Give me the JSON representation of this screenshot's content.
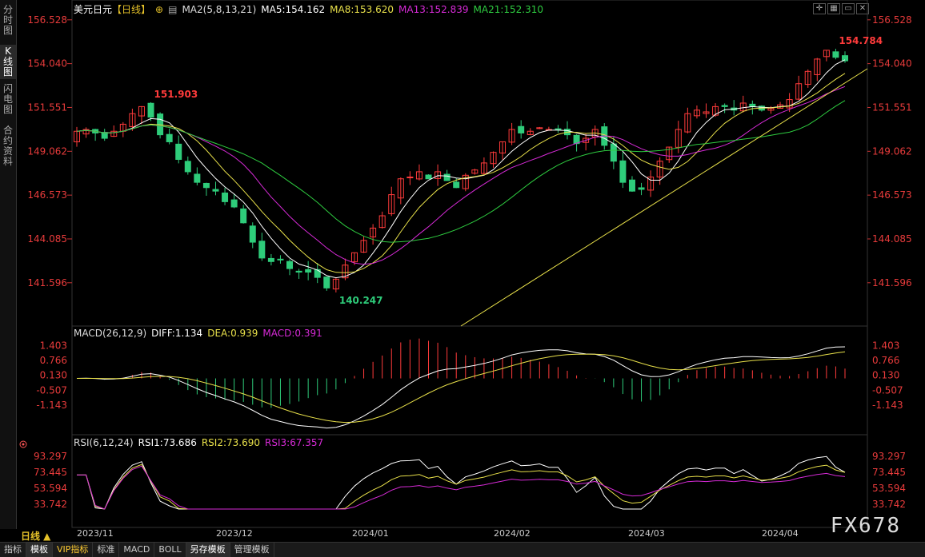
{
  "sidebar": {
    "items": [
      "分时图",
      "K线图",
      "闪电图",
      "合约资料"
    ],
    "active": 1
  },
  "header": {
    "symbol": "美元日元",
    "period_tag": "【日线】",
    "ma_title": "MA2(5,8,13,21)",
    "ma5": "MA5:154.162",
    "ma8": "MA8:153.620",
    "ma13": "MA13:152.839",
    "ma21": "MA21:152.310"
  },
  "macd_header": {
    "title": "MACD(26,12,9)",
    "diff": "DIFF:1.134",
    "dea": "DEA:0.939",
    "macd": "MACD:0.391"
  },
  "rsi_header": {
    "title": "RSI(6,12,24)",
    "rsi1": "RSI1:73.686",
    "rsi2": "RSI2:73.690",
    "rsi3": "RSI3:67.357"
  },
  "bottom_tabs": [
    "指标",
    "模板",
    "VIP指标",
    "标准",
    "MACD",
    "BOLL",
    "另存模板",
    "管理模板"
  ],
  "period_button": "日线 ▲",
  "date_labels": [
    "2023/11",
    "2023/12",
    "2024/01",
    "2024/02",
    "2024/03",
    "2024/04"
  ],
  "watermark": "FX678",
  "colors": {
    "up": "#ff3b3b",
    "down": "#2ecc7a",
    "ma5": "#ffffff",
    "ma8": "#e8e04a",
    "ma13": "#d62ad6",
    "ma21": "#2ecc40",
    "trend": "#e8e04a"
  },
  "chart_data": [
    {
      "type": "candlestick",
      "ylim": [
        139.5,
        157.2
      ],
      "yticks": [
        "156.528",
        "154.040",
        "151.551",
        "149.062",
        "146.573",
        "144.085",
        "141.596"
      ],
      "annotations": [
        {
          "label": "151.903",
          "type": "high"
        },
        {
          "label": "140.247",
          "type": "low"
        },
        {
          "label": "154.784",
          "type": "high"
        }
      ],
      "close_path": [
        150.2,
        150.3,
        150.1,
        149.8,
        150.2,
        150.6,
        151.2,
        151.6,
        151.0,
        150.0,
        149.6,
        148.6,
        147.9,
        147.3,
        147.0,
        146.8,
        146.2,
        145.9,
        145.0,
        143.9,
        143.0,
        142.8,
        142.9,
        142.4,
        142.2,
        142.2,
        141.9,
        141.3,
        141.8,
        142.6,
        143.3,
        144.0,
        144.7,
        145.4,
        146.6,
        147.5,
        147.6,
        147.9,
        147.5,
        147.9,
        147.4,
        147.0,
        147.7,
        148.0,
        148.4,
        149.0,
        149.6,
        150.3,
        150.1,
        150.2,
        150.4,
        150.3,
        150.3,
        150.0,
        149.5,
        149.8,
        150.3,
        149.4,
        148.5,
        147.3,
        146.8,
        146.9,
        147.6,
        148.5,
        149.3,
        150.3,
        151.2,
        151.4,
        151.3,
        151.6,
        151.6,
        151.4,
        151.8,
        151.6,
        151.4,
        151.5,
        151.7,
        152.0,
        152.9,
        153.6,
        154.3,
        154.8,
        154.4,
        154.2
      ],
      "ma_series": [
        {
          "name": "MA5",
          "value": "154.162"
        },
        {
          "name": "MA8",
          "value": "153.620"
        },
        {
          "name": "MA13",
          "value": "152.839"
        },
        {
          "name": "MA21",
          "value": "152.310"
        }
      ]
    },
    {
      "type": "bar+line",
      "name": "MACD",
      "ylim": [
        -1.65,
        1.55
      ],
      "yticks": [
        "1.403",
        "0.766",
        "0.130",
        "-0.507",
        "-1.143"
      ],
      "series": [
        {
          "name": "DIFF",
          "last": 1.134
        },
        {
          "name": "DEA",
          "last": 0.939
        },
        {
          "name": "MACD",
          "last": 0.391
        }
      ]
    },
    {
      "type": "line",
      "name": "RSI",
      "ylim": [
        25,
        100
      ],
      "yticks": [
        "93.297",
        "73.445",
        "53.594",
        "33.742"
      ],
      "series": [
        {
          "name": "RSI1",
          "last": 73.686
        },
        {
          "name": "RSI2",
          "last": 73.69
        },
        {
          "name": "RSI3",
          "last": 67.357
        }
      ]
    }
  ]
}
